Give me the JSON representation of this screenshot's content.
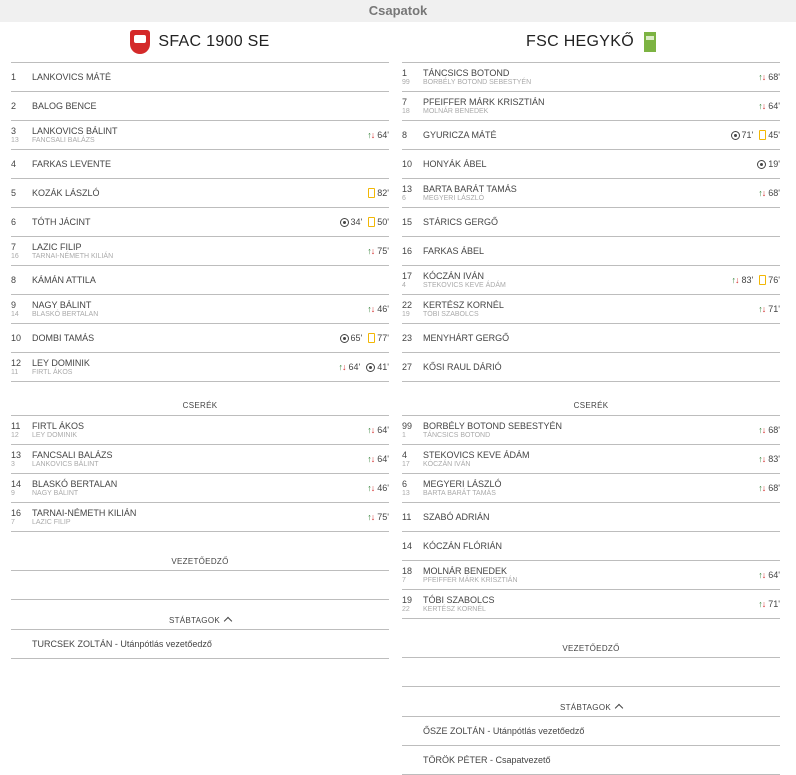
{
  "page_title": "Csapatok",
  "labels": {
    "subs": "CSERÉK",
    "coach": "VEZETŐEDZŐ",
    "staff": "STÁBTAGOK"
  },
  "home": {
    "name": "SFAC 1900 SE",
    "starters": [
      {
        "num": "1",
        "name": "LANKOVICS MÁTÉ",
        "events": []
      },
      {
        "num": "2",
        "name": "BALOG BENCE",
        "events": []
      },
      {
        "num": "3",
        "name": "LANKOVICS BÁLINT",
        "subnum": "13",
        "subname": "FANCSALI BALÁZS",
        "events": [
          {
            "type": "sub",
            "time": "64'"
          }
        ]
      },
      {
        "num": "4",
        "name": "FARKAS LEVENTE",
        "events": []
      },
      {
        "num": "5",
        "name": "KOZÁK LÁSZLÓ",
        "events": [
          {
            "type": "yellow",
            "time": "82'"
          }
        ]
      },
      {
        "num": "6",
        "name": "TÓTH JÁCINT",
        "events": [
          {
            "type": "goal",
            "time": "34'"
          },
          {
            "type": "yellow",
            "time": "50'"
          }
        ]
      },
      {
        "num": "7",
        "name": "LAZIC FILIP",
        "subnum": "16",
        "subname": "TARNAI-NÉMETH KILIÁN",
        "events": [
          {
            "type": "sub",
            "time": "75'"
          }
        ]
      },
      {
        "num": "8",
        "name": "KÁMÁN ATTILA",
        "events": []
      },
      {
        "num": "9",
        "name": "NAGY BÁLINT",
        "subnum": "14",
        "subname": "BLASKÓ BERTALAN",
        "events": [
          {
            "type": "sub",
            "time": "46'"
          }
        ]
      },
      {
        "num": "10",
        "name": "DOMBI TAMÁS",
        "events": [
          {
            "type": "goal",
            "time": "65'"
          },
          {
            "type": "yellow",
            "time": "77'"
          }
        ]
      },
      {
        "num": "12",
        "name": "LEY DOMINIK",
        "subnum": "11",
        "subname": "FIRTL ÁKOS",
        "events": [
          {
            "type": "sub",
            "time": "64'"
          },
          {
            "type": "goal",
            "time": "41'"
          }
        ]
      }
    ],
    "subs": [
      {
        "num": "11",
        "name": "FIRTL ÁKOS",
        "subnum": "12",
        "subname": "LEY DOMINIK",
        "events": [
          {
            "type": "sub",
            "time": "64'"
          }
        ]
      },
      {
        "num": "13",
        "name": "FANCSALI BALÁZS",
        "subnum": "3",
        "subname": "LANKOVICS BÁLINT",
        "events": [
          {
            "type": "sub",
            "time": "64'"
          }
        ]
      },
      {
        "num": "14",
        "name": "BLASKÓ BERTALAN",
        "subnum": "9",
        "subname": "NAGY BÁLINT",
        "events": [
          {
            "type": "sub",
            "time": "46'"
          }
        ]
      },
      {
        "num": "16",
        "name": "TARNAI-NÉMETH KILIÁN",
        "subnum": "7",
        "subname": "LAZIC FILIP",
        "events": [
          {
            "type": "sub",
            "time": "75'"
          }
        ]
      }
    ],
    "staff": [
      {
        "name": "TURCSEK ZOLTÁN",
        "role": "Utánpótlás vezetőedző"
      }
    ]
  },
  "away": {
    "name": "FSC HEGYKŐ",
    "starters": [
      {
        "num": "1",
        "name": "TÁNCSICS BOTOND",
        "subnum": "99",
        "subname": "BORBÉLY BOTOND SEBESTYÉN",
        "events": [
          {
            "type": "sub",
            "time": "68'"
          }
        ]
      },
      {
        "num": "7",
        "name": "PFEIFFER MÁRK KRISZTIÁN",
        "subnum": "18",
        "subname": "MOLNÁR BENEDEK",
        "events": [
          {
            "type": "sub",
            "time": "64'"
          }
        ]
      },
      {
        "num": "8",
        "name": "GYURICZA MÁTÉ",
        "events": [
          {
            "type": "goal",
            "time": "71'"
          },
          {
            "type": "yellow",
            "time": "45'"
          }
        ]
      },
      {
        "num": "10",
        "name": "HONYÁK ÁBEL",
        "events": [
          {
            "type": "goal",
            "time": "19'"
          }
        ]
      },
      {
        "num": "13",
        "name": "BARTA BARÁT TAMÁS",
        "subnum": "6",
        "subname": "MEGYERI LÁSZLÓ",
        "events": [
          {
            "type": "sub",
            "time": "68'"
          }
        ]
      },
      {
        "num": "15",
        "name": "STÁRICS GERGŐ",
        "events": []
      },
      {
        "num": "16",
        "name": "FARKAS ÁBEL",
        "events": []
      },
      {
        "num": "17",
        "name": "KÓCZÁN IVÁN",
        "subnum": "4",
        "subname": "STEKOVICS KEVE ÁDÁM",
        "events": [
          {
            "type": "sub",
            "time": "83'"
          },
          {
            "type": "yellow",
            "time": "76'"
          }
        ]
      },
      {
        "num": "22",
        "name": "KERTÉSZ KORNÉL",
        "subnum": "19",
        "subname": "TÓBI SZABOLCS",
        "events": [
          {
            "type": "sub",
            "time": "71'"
          }
        ]
      },
      {
        "num": "23",
        "name": "MENYHÁRT GERGŐ",
        "events": []
      },
      {
        "num": "27",
        "name": "KŐSI RAUL DÁRIÓ",
        "events": []
      }
    ],
    "subs": [
      {
        "num": "99",
        "name": "BORBÉLY BOTOND SEBESTYÉN",
        "subnum": "1",
        "subname": "TÁNCSICS BOTOND",
        "events": [
          {
            "type": "sub",
            "time": "68'"
          }
        ]
      },
      {
        "num": "4",
        "name": "STEKOVICS KEVE ÁDÁM",
        "subnum": "17",
        "subname": "KÓCZÁN IVÁN",
        "events": [
          {
            "type": "sub",
            "time": "83'"
          }
        ]
      },
      {
        "num": "6",
        "name": "MEGYERI LÁSZLÓ",
        "subnum": "13",
        "subname": "BARTA BARÁT TAMÁS",
        "events": [
          {
            "type": "sub",
            "time": "68'"
          }
        ]
      },
      {
        "num": "11",
        "name": "SZABÓ ADRIÁN",
        "events": []
      },
      {
        "num": "14",
        "name": "KÓCZÁN FLÓRIÁN",
        "events": []
      },
      {
        "num": "18",
        "name": "MOLNÁR BENEDEK",
        "subnum": "7",
        "subname": "PFEIFFER MÁRK KRISZTIÁN",
        "events": [
          {
            "type": "sub",
            "time": "64'"
          }
        ]
      },
      {
        "num": "19",
        "name": "TÓBI SZABOLCS",
        "subnum": "22",
        "subname": "KERTÉSZ KORNÉL",
        "events": [
          {
            "type": "sub",
            "time": "71'"
          }
        ]
      }
    ],
    "staff": [
      {
        "name": "ŐSZE ZOLTÁN",
        "role": "Utánpótlás vezetőedző"
      },
      {
        "name": "TÖRÖK PÉTER",
        "role": "Csapatvezető"
      }
    ]
  }
}
